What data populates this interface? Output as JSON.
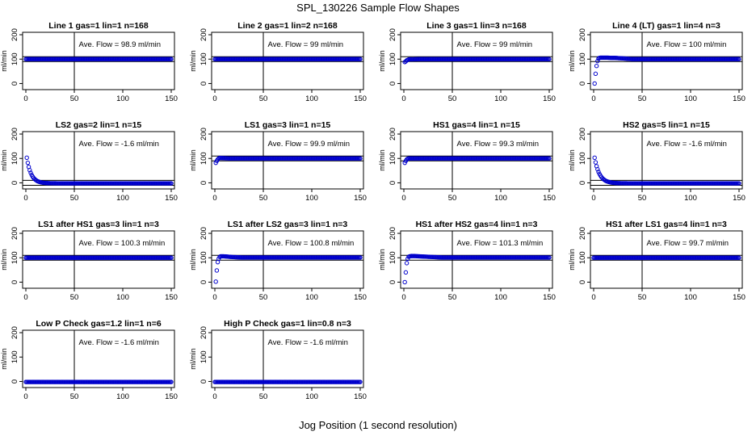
{
  "page": {
    "title": "SPL_130226  Sample Flow Shapes",
    "xlabel": "Jog Position (1 second resolution)"
  },
  "style": {
    "point_color": "#0000cc",
    "axis_color": "#000000",
    "ref_line_color": "#000000"
  },
  "chart_data": [
    {
      "type": "scatter",
      "title": "Line 1 gas=1 lin=1 n=168",
      "annotation": "Ave. Flow = 98.9  ml/min",
      "ylabel": "ml/min",
      "xlim": [
        0,
        150
      ],
      "ylim": [
        -25,
        210
      ],
      "x_ticks": [
        0,
        50,
        100,
        150
      ],
      "y_ticks": [
        0,
        100,
        200
      ],
      "vline_x": 50,
      "hlines_y": [
        90,
        110
      ],
      "series": [
        {
          "shape": "flat",
          "level": 100,
          "x_range": [
            0,
            150
          ]
        }
      ]
    },
    {
      "type": "scatter",
      "title": "Line 2 gas=1 lin=2 n=168",
      "annotation": "Ave. Flow = 99  ml/min",
      "ylabel": "ml/min",
      "xlim": [
        0,
        150
      ],
      "ylim": [
        -25,
        210
      ],
      "x_ticks": [
        0,
        50,
        100,
        150
      ],
      "y_ticks": [
        0,
        100,
        200
      ],
      "vline_x": 50,
      "hlines_y": [
        90,
        110
      ],
      "series": [
        {
          "shape": "flat",
          "level": 100,
          "x_range": [
            0,
            150
          ]
        }
      ]
    },
    {
      "type": "scatter",
      "title": "Line 3 gas=1 lin=3 n=168",
      "annotation": "Ave. Flow = 99  ml/min",
      "ylabel": "ml/min",
      "xlim": [
        0,
        150
      ],
      "ylim": [
        -25,
        210
      ],
      "x_ticks": [
        0,
        50,
        100,
        150
      ],
      "y_ticks": [
        0,
        100,
        200
      ],
      "vline_x": 50,
      "hlines_y": [
        90,
        110
      ],
      "series": [
        {
          "shape": "rise",
          "level": 100,
          "x_range": [
            1,
            150
          ],
          "start_points": [
            [
              1,
              88
            ],
            [
              2,
              91
            ],
            [
              3,
              95
            ],
            [
              4,
              97
            ],
            [
              5,
              99
            ]
          ]
        }
      ]
    },
    {
      "type": "scatter",
      "title": "Line 4 (LT) gas=1 lin=4 n=3",
      "annotation": "Ave. Flow = 100  ml/min",
      "ylabel": "ml/min",
      "xlim": [
        0,
        150
      ],
      "ylim": [
        -25,
        210
      ],
      "x_ticks": [
        0,
        50,
        100,
        150
      ],
      "y_ticks": [
        0,
        100,
        200
      ],
      "vline_x": 50,
      "hlines_y": [
        90,
        110
      ],
      "series": [
        {
          "shape": "rise",
          "level": 100,
          "x_range": [
            1,
            150
          ],
          "start_points": [
            [
              1,
              0
            ],
            [
              2,
              40
            ],
            [
              3,
              72
            ],
            [
              4,
              92
            ],
            [
              5,
              102
            ],
            [
              6,
              105
            ],
            [
              7,
              106
            ],
            [
              10,
              106
            ],
            [
              14,
              106
            ],
            [
              18,
              105
            ],
            [
              22,
              105
            ],
            [
              26,
              104
            ],
            [
              30,
              103
            ]
          ]
        }
      ]
    },
    {
      "type": "scatter",
      "title": "LS2 gas=2 lin=1 n=15",
      "annotation": "Ave. Flow = -1.6  ml/min",
      "ylabel": "ml/min",
      "xlim": [
        0,
        150
      ],
      "ylim": [
        -25,
        210
      ],
      "x_ticks": [
        0,
        50,
        100,
        150
      ],
      "y_ticks": [
        0,
        100,
        200
      ],
      "vline_x": 50,
      "hlines_y": [
        -10,
        10
      ],
      "series": [
        {
          "shape": "decay",
          "level": -2,
          "x_range": [
            1,
            150
          ],
          "start": 103,
          "tau": 4.5
        }
      ]
    },
    {
      "type": "scatter",
      "title": "LS1 gas=3 lin=1 n=15",
      "annotation": "Ave. Flow = 99.9  ml/min",
      "ylabel": "ml/min",
      "xlim": [
        0,
        150
      ],
      "ylim": [
        -25,
        210
      ],
      "x_ticks": [
        0,
        50,
        100,
        150
      ],
      "y_ticks": [
        0,
        100,
        200
      ],
      "vline_x": 50,
      "hlines_y": [
        90,
        110
      ],
      "series": [
        {
          "shape": "rise",
          "level": 100,
          "x_range": [
            1,
            150
          ],
          "start_points": [
            [
              1,
              82
            ],
            [
              2,
              90
            ],
            [
              3,
              96
            ],
            [
              4,
              100
            ],
            [
              5,
              102
            ]
          ]
        }
      ]
    },
    {
      "type": "scatter",
      "title": "HS1 gas=4 lin=1 n=15",
      "annotation": "Ave. Flow = 99.3  ml/min",
      "ylabel": "ml/min",
      "xlim": [
        0,
        150
      ],
      "ylim": [
        -25,
        210
      ],
      "x_ticks": [
        0,
        50,
        100,
        150
      ],
      "y_ticks": [
        0,
        100,
        200
      ],
      "vline_x": 50,
      "hlines_y": [
        90,
        110
      ],
      "series": [
        {
          "shape": "rise",
          "level": 100,
          "x_range": [
            1,
            150
          ],
          "start_points": [
            [
              1,
              82
            ],
            [
              2,
              90
            ],
            [
              3,
              96
            ],
            [
              4,
              99
            ],
            [
              5,
              100
            ]
          ]
        }
      ]
    },
    {
      "type": "scatter",
      "title": "HS2 gas=5 lin=1 n=15",
      "annotation": "Ave. Flow = -1.6  ml/min",
      "ylabel": "ml/min",
      "xlim": [
        0,
        150
      ],
      "ylim": [
        -25,
        210
      ],
      "x_ticks": [
        0,
        50,
        100,
        150
      ],
      "y_ticks": [
        0,
        100,
        200
      ],
      "vline_x": 50,
      "hlines_y": [
        -10,
        10
      ],
      "series": [
        {
          "shape": "decay",
          "level": -2,
          "x_range": [
            1,
            150
          ],
          "start": 103,
          "tau": 5
        }
      ]
    },
    {
      "type": "scatter",
      "title": "LS1 after HS1 gas=3 lin=1 n=3",
      "annotation": "Ave. Flow = 100.3  ml/min",
      "ylabel": "ml/min",
      "xlim": [
        0,
        150
      ],
      "ylim": [
        -25,
        210
      ],
      "x_ticks": [
        0,
        50,
        100,
        150
      ],
      "y_ticks": [
        0,
        100,
        200
      ],
      "vline_x": 50,
      "hlines_y": [
        90,
        110
      ],
      "series": [
        {
          "shape": "flat",
          "level": 100,
          "x_range": [
            0,
            150
          ]
        }
      ]
    },
    {
      "type": "scatter",
      "title": "LS1 after LS2 gas=3 lin=1 n=3",
      "annotation": "Ave. Flow = 100.8  ml/min",
      "ylabel": "ml/min",
      "xlim": [
        0,
        150
      ],
      "ylim": [
        -25,
        210
      ],
      "x_ticks": [
        0,
        50,
        100,
        150
      ],
      "y_ticks": [
        0,
        100,
        200
      ],
      "vline_x": 50,
      "hlines_y": [
        90,
        110
      ],
      "series": [
        {
          "shape": "rise",
          "level": 101,
          "x_range": [
            1,
            150
          ],
          "start_points": [
            [
              1,
              2
            ],
            [
              2,
              48
            ],
            [
              3,
              82
            ],
            [
              4,
              96
            ],
            [
              5,
              103
            ],
            [
              6,
              106
            ],
            [
              7,
              106
            ],
            [
              9,
              106
            ],
            [
              12,
              105
            ],
            [
              15,
              104
            ],
            [
              18,
              103
            ]
          ]
        }
      ]
    },
    {
      "type": "scatter",
      "title": "HS1 after HS2 gas=4 lin=1 n=3",
      "annotation": "Ave. Flow = 101.3  ml/min",
      "ylabel": "ml/min",
      "xlim": [
        0,
        150
      ],
      "ylim": [
        -25,
        210
      ],
      "x_ticks": [
        0,
        50,
        100,
        150
      ],
      "y_ticks": [
        0,
        100,
        200
      ],
      "vline_x": 50,
      "hlines_y": [
        90,
        110
      ],
      "series": [
        {
          "shape": "rise",
          "level": 101,
          "x_range": [
            1,
            150
          ],
          "start_points": [
            [
              1,
              0
            ],
            [
              2,
              40
            ],
            [
              3,
              78
            ],
            [
              4,
              96
            ],
            [
              5,
              104
            ],
            [
              6,
              106
            ],
            [
              8,
              107
            ],
            [
              11,
              107
            ],
            [
              15,
              106
            ],
            [
              20,
              105
            ],
            [
              25,
              104
            ],
            [
              30,
              103
            ]
          ]
        }
      ]
    },
    {
      "type": "scatter",
      "title": "HS1 after LS1 gas=4 lin=1 n=3",
      "annotation": "Ave. Flow = 99.7  ml/min",
      "ylabel": "ml/min",
      "xlim": [
        0,
        150
      ],
      "ylim": [
        -25,
        210
      ],
      "x_ticks": [
        0,
        50,
        100,
        150
      ],
      "y_ticks": [
        0,
        100,
        200
      ],
      "vline_x": 50,
      "hlines_y": [
        90,
        110
      ],
      "series": [
        {
          "shape": "flat",
          "level": 100,
          "x_range": [
            0,
            150
          ]
        }
      ]
    },
    {
      "type": "scatter",
      "title": "Low P Check gas=1.2 lin=1 n=6",
      "annotation": "Ave. Flow = -1.6  ml/min",
      "ylabel": "ml/min",
      "xlim": [
        0,
        150
      ],
      "ylim": [
        -25,
        210
      ],
      "x_ticks": [
        0,
        50,
        100,
        150
      ],
      "y_ticks": [
        0,
        100,
        200
      ],
      "vline_x": 50,
      "hlines_y": [],
      "series": [
        {
          "shape": "flat",
          "level": -2,
          "x_range": [
            0,
            150
          ]
        }
      ]
    },
    {
      "type": "scatter",
      "title": "High P Check gas=1 lin=0.8 n=3",
      "annotation": "Ave. Flow = -1.6  ml/min",
      "ylabel": "ml/min",
      "xlim": [
        0,
        150
      ],
      "ylim": [
        -25,
        210
      ],
      "x_ticks": [
        0,
        50,
        100,
        150
      ],
      "y_ticks": [
        0,
        100,
        200
      ],
      "vline_x": 50,
      "hlines_y": [],
      "series": [
        {
          "shape": "flat",
          "level": -2,
          "x_range": [
            0,
            150
          ]
        }
      ]
    }
  ]
}
